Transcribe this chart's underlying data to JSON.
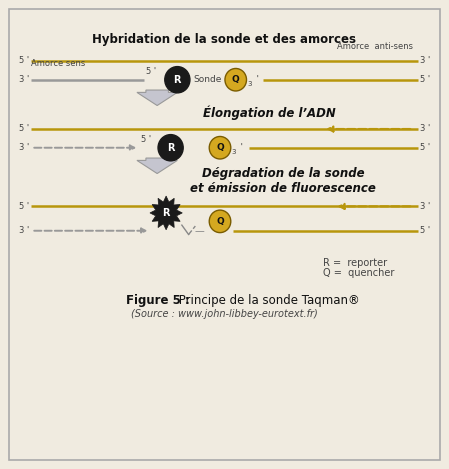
{
  "bg_color": "#f0ebe0",
  "border_color": "#aaaaaa",
  "section1_title": "Hybridation de la sonde et des amorces",
  "section2_title": "Élongation de l’ADN",
  "section3_title": "Dégradation de la sonde\net émission de fluorescence",
  "caption_bold": "Figure 5 :",
  "caption_rest": " Principe de la sonde Taqman®",
  "caption_sub": "(Source : www.john-libbey-eurotext.fr)",
  "gold": "#b8960c",
  "gray_line": "#999999",
  "arrow_gray": "#b0b0b8",
  "R_dark": "#1a1a1a",
  "Q_gold": "#d4a820",
  "Q_edge": "#7a5c00",
  "text_dark": "#111111",
  "text_mid": "#444444",
  "text_light": "#555555"
}
